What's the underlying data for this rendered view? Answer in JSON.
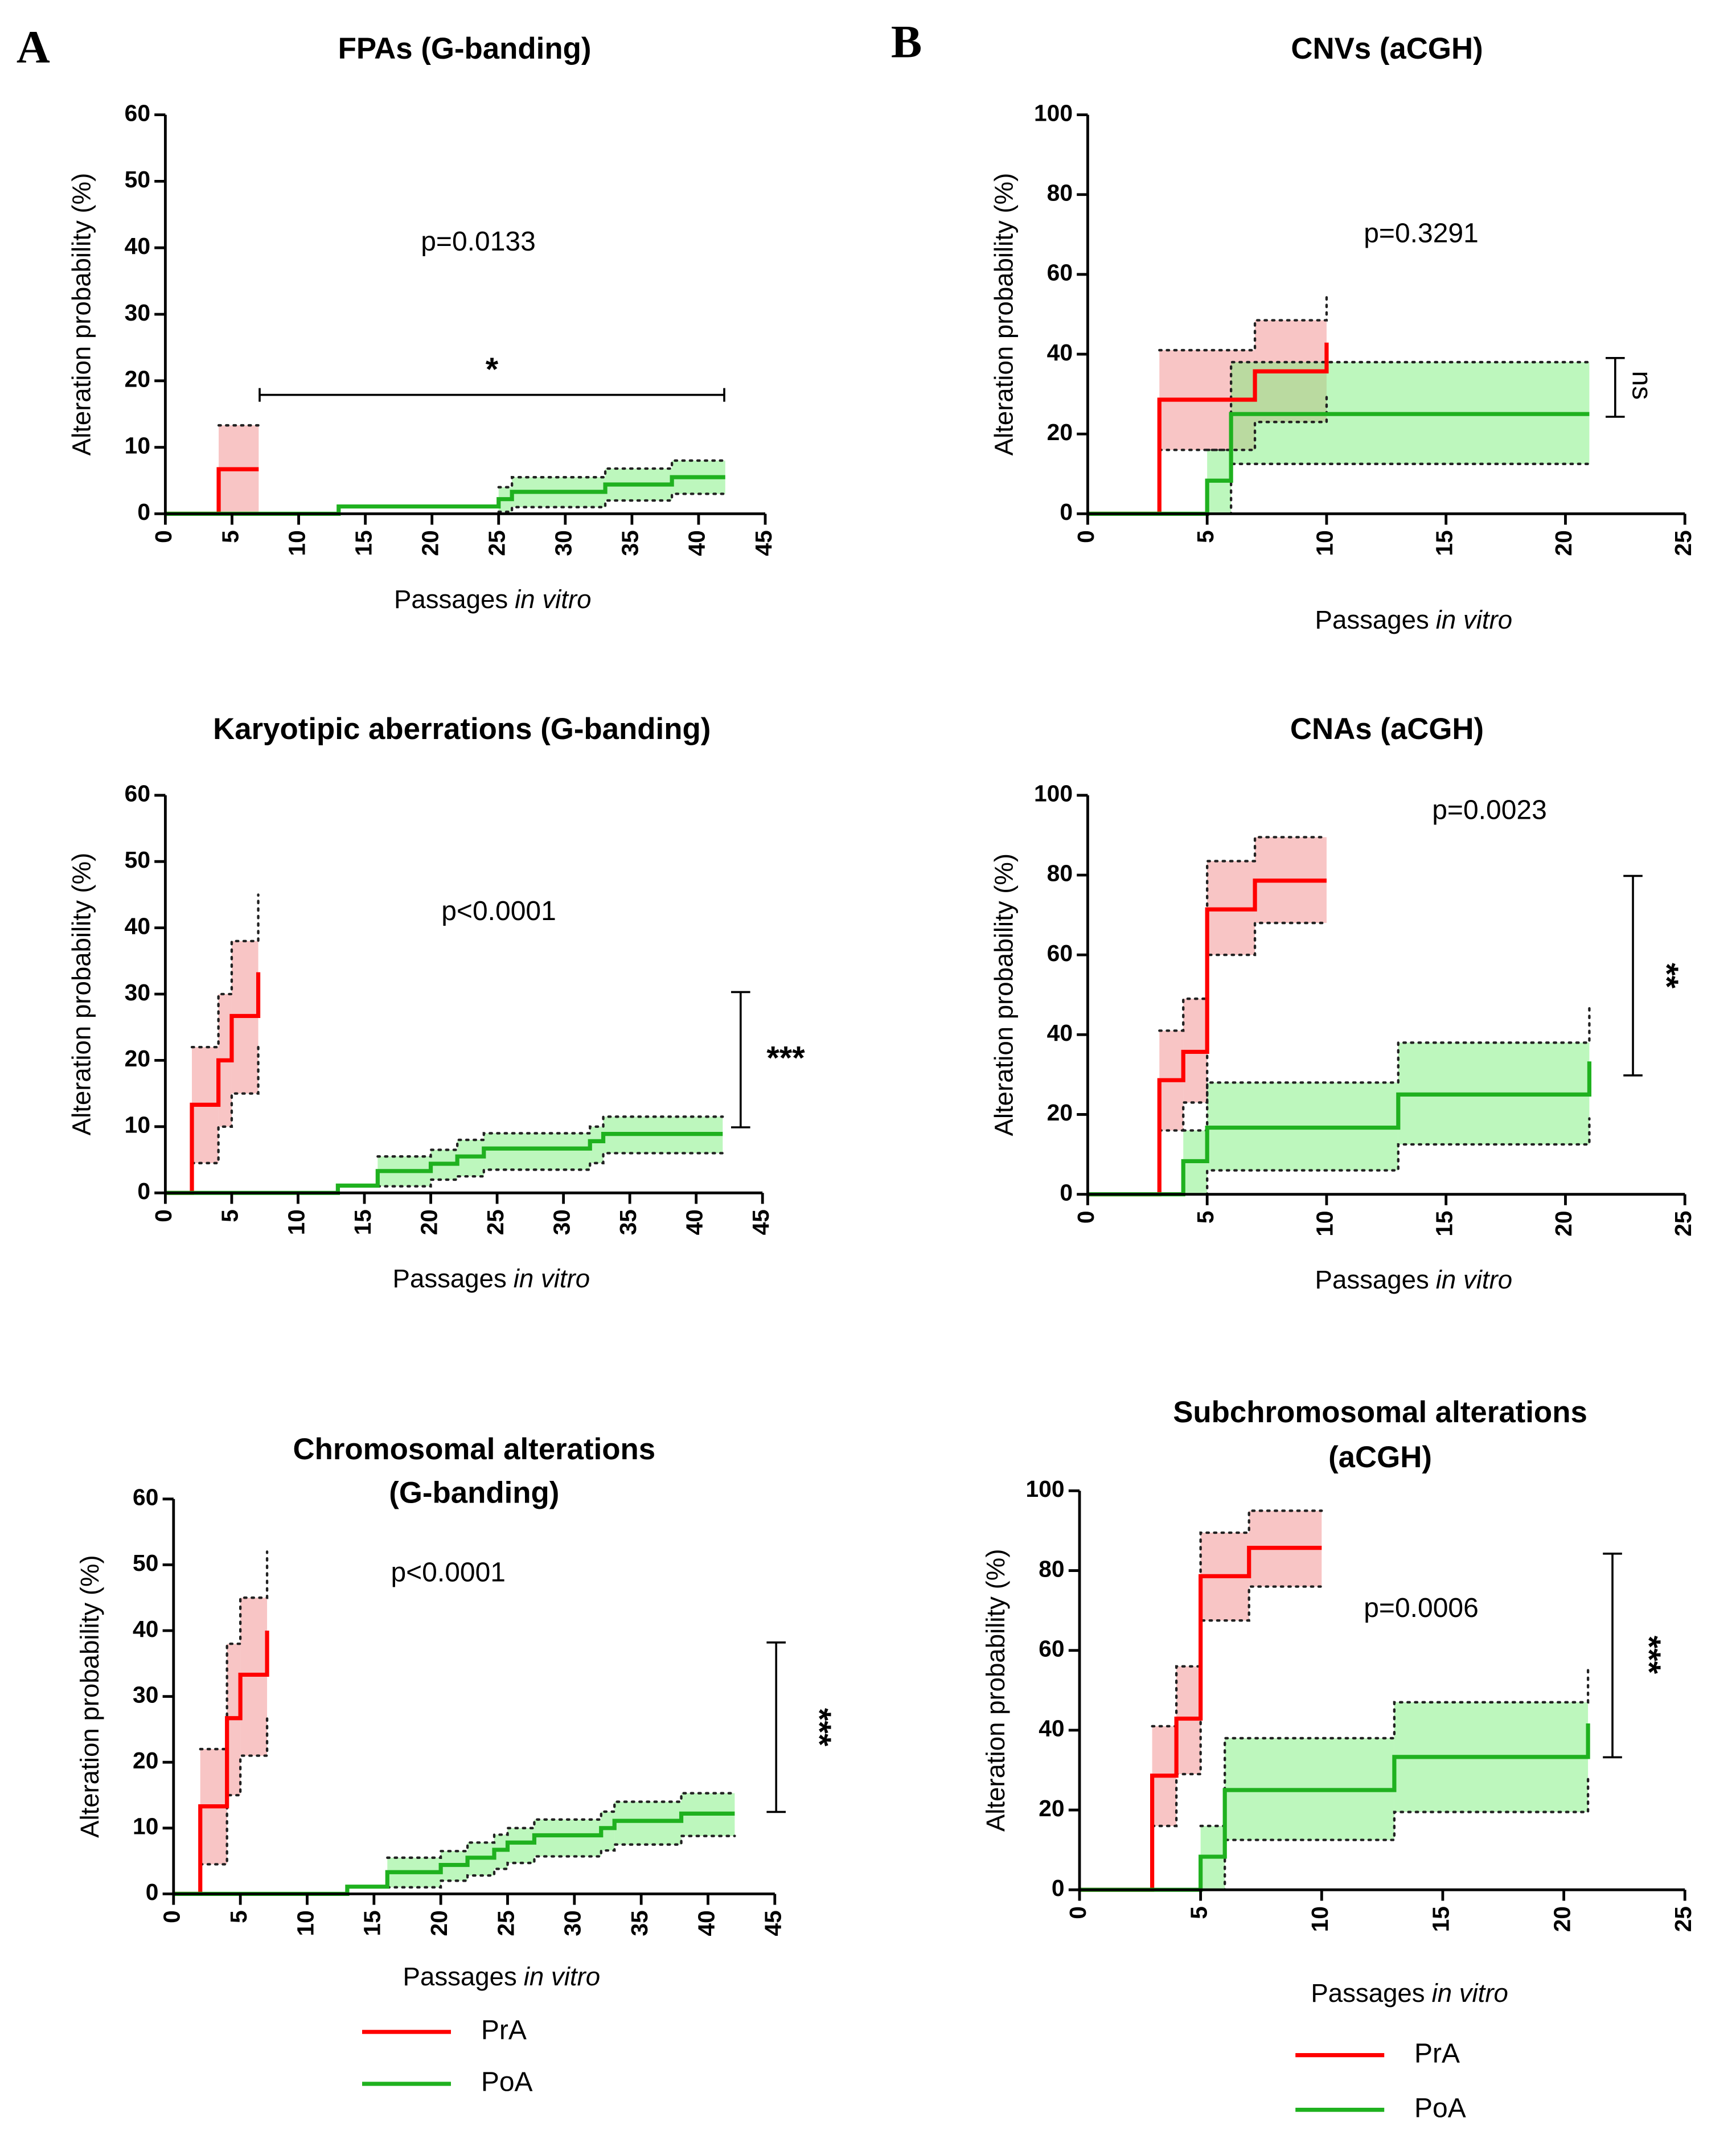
{
  "panel_labels": [
    "A",
    "B"
  ],
  "chart_data": [
    {
      "type": "line",
      "title": [
        "FPAs (G-banding)"
      ],
      "ylabel": "Alteration probability (%)",
      "xlabel": {
        "text": "Passages",
        "italic": "in vitro"
      },
      "annotation": "p=0.0133",
      "significance": "*",
      "xlim": [
        0,
        45
      ],
      "ylim": [
        0,
        60
      ],
      "xticks": [
        0,
        5,
        10,
        15,
        20,
        25,
        30,
        35,
        40,
        45
      ],
      "yticks": [
        0,
        10,
        20,
        30,
        40,
        50,
        60
      ],
      "series": [
        {
          "name": "PrA",
          "color": "#ff0000",
          "band_color": "#f28b8b",
          "x": [
            0,
            4,
            7
          ],
          "values": [
            0,
            6.7,
            6.7
          ],
          "lower": [
            null,
            0,
            0
          ],
          "upper": [
            null,
            13.3,
            13.3
          ]
        },
        {
          "name": "PoA",
          "color": "#1fb11f",
          "band_color": "#7cf07c",
          "x": [
            0,
            13,
            25,
            26,
            33,
            38,
            42
          ],
          "values": [
            0,
            1.1,
            2.2,
            3.3,
            4.4,
            5.5,
            5.5
          ],
          "lower": [
            null,
            null,
            0.3,
            1,
            2,
            3,
            3
          ],
          "upper": [
            null,
            null,
            4,
            5.5,
            6.8,
            8,
            8
          ]
        }
      ]
    },
    {
      "type": "line",
      "title": [
        "Karyotipic aberrations (G-banding)"
      ],
      "ylabel": "Alteration probability (%)",
      "xlabel": {
        "text": "Passages",
        "italic": "in vitro"
      },
      "annotation": "p<0.0001",
      "significance": "***",
      "xlim": [
        0,
        45
      ],
      "ylim": [
        0,
        60
      ],
      "xticks": [
        0,
        5,
        10,
        15,
        20,
        25,
        30,
        35,
        40,
        45
      ],
      "yticks": [
        0,
        10,
        20,
        30,
        40,
        50,
        60
      ],
      "series": [
        {
          "name": "PrA",
          "color": "#ff0000",
          "band_color": "#f28b8b",
          "x": [
            0,
            2,
            4,
            5,
            7
          ],
          "values": [
            0,
            13.3,
            20,
            26.7,
            33.3
          ],
          "lower": [
            null,
            4.5,
            10,
            15,
            22
          ],
          "upper": [
            null,
            22,
            30,
            38,
            45
          ]
        },
        {
          "name": "PoA",
          "color": "#1fb11f",
          "band_color": "#7cf07c",
          "x": [
            0,
            13,
            16,
            20,
            22,
            24,
            32,
            33,
            42
          ],
          "values": [
            0,
            1.1,
            3.3,
            4.4,
            5.5,
            6.7,
            7.8,
            8.9,
            8.9
          ],
          "lower": [
            null,
            null,
            1,
            2,
            2.5,
            3.5,
            4.5,
            6,
            6
          ],
          "upper": [
            null,
            null,
            5.5,
            6.5,
            8,
            9,
            10,
            11.5,
            11.5
          ]
        }
      ]
    },
    {
      "type": "line",
      "title": [
        "Chromosomal alterations",
        "(G-banding)"
      ],
      "ylabel": "Alteration probability (%)",
      "xlabel": {
        "text": "Passages",
        "italic": "in vitro"
      },
      "annotation": "p<0.0001",
      "significance": "***",
      "legend": true,
      "xlim": [
        0,
        45
      ],
      "ylim": [
        0,
        60
      ],
      "xticks": [
        0,
        5,
        10,
        15,
        20,
        25,
        30,
        35,
        40,
        45
      ],
      "yticks": [
        0,
        10,
        20,
        30,
        40,
        50,
        60
      ],
      "series": [
        {
          "name": "PrA",
          "color": "#ff0000",
          "band_color": "#f28b8b",
          "x": [
            0,
            2,
            4,
            5,
            7
          ],
          "values": [
            0,
            13.3,
            26.7,
            33.3,
            40
          ],
          "lower": [
            null,
            4.5,
            15,
            21,
            27
          ],
          "upper": [
            null,
            22,
            38,
            45,
            52
          ]
        },
        {
          "name": "PoA",
          "color": "#1fb11f",
          "band_color": "#7cf07c",
          "x": [
            0,
            13,
            16,
            20,
            22,
            24,
            25,
            27,
            32,
            33,
            38,
            42
          ],
          "values": [
            0,
            1.1,
            3.3,
            4.4,
            5.5,
            6.7,
            7.8,
            8.9,
            10,
            11.1,
            12.2,
            12.2
          ],
          "lower": [
            null,
            null,
            1,
            2,
            2.8,
            3.8,
            4.7,
            5.7,
            6.6,
            7.5,
            8.8,
            8.8
          ],
          "upper": [
            null,
            null,
            5.5,
            6.5,
            7.8,
            9,
            10,
            11.3,
            12.5,
            14,
            15.3,
            15.3
          ]
        }
      ]
    },
    {
      "type": "line",
      "title": [
        "CNVs (aCGH)"
      ],
      "ylabel": "Alteration probability (%)",
      "xlabel": {
        "text": "Passages",
        "italic": "in vitro"
      },
      "annotation": "p=0.3291",
      "significance": "ns",
      "xlim": [
        0,
        25
      ],
      "ylim": [
        0,
        100
      ],
      "xticks": [
        0,
        5,
        10,
        15,
        20,
        25
      ],
      "yticks": [
        0,
        20,
        40,
        60,
        80,
        100
      ],
      "series": [
        {
          "name": "PrA",
          "color": "#ff0000",
          "band_color": "#f28b8b",
          "x": [
            0,
            3,
            7,
            10
          ],
          "values": [
            0,
            28.6,
            35.7,
            42.9
          ],
          "lower": [
            null,
            16,
            23,
            30
          ],
          "upper": [
            null,
            41,
            48.5,
            55
          ]
        },
        {
          "name": "PoA",
          "color": "#1fb11f",
          "band_color": "#7cf07c",
          "x": [
            0,
            5,
            6,
            21
          ],
          "values": [
            0,
            8.3,
            25,
            25
          ],
          "lower": [
            null,
            0,
            12.5,
            12.5
          ],
          "upper": [
            null,
            16,
            38,
            38
          ]
        }
      ]
    },
    {
      "type": "line",
      "title": [
        "CNAs (aCGH)"
      ],
      "ylabel": "Alteration probability (%)",
      "xlabel": {
        "text": "Passages",
        "italic": "in vitro"
      },
      "annotation": "p=0.0023",
      "significance": "**",
      "xlim": [
        0,
        25
      ],
      "ylim": [
        0,
        100
      ],
      "xticks": [
        0,
        5,
        10,
        15,
        20,
        25
      ],
      "yticks": [
        0,
        20,
        40,
        60,
        80,
        100
      ],
      "series": [
        {
          "name": "PrA",
          "color": "#ff0000",
          "band_color": "#f28b8b",
          "x": [
            0,
            3,
            4,
            5,
            7,
            10
          ],
          "values": [
            0,
            28.6,
            35.7,
            71.4,
            78.6,
            78.6
          ],
          "lower": [
            null,
            16,
            23,
            60,
            68,
            68
          ],
          "upper": [
            null,
            41,
            49,
            83.5,
            89.5,
            89.5
          ]
        },
        {
          "name": "PoA",
          "color": "#1fb11f",
          "band_color": "#7cf07c",
          "x": [
            0,
            4,
            5,
            13,
            21
          ],
          "values": [
            0,
            8.3,
            16.7,
            25,
            33.3
          ],
          "lower": [
            null,
            0,
            6,
            12.5,
            19
          ],
          "upper": [
            null,
            16,
            28,
            38,
            47
          ]
        }
      ]
    },
    {
      "type": "line",
      "title": [
        "Subchromosomal alterations",
        "(aCGH)"
      ],
      "ylabel": "Alteration probability (%)",
      "xlabel": {
        "text": "Passages",
        "italic": "in vitro"
      },
      "annotation": "p=0.0006",
      "significance": "***",
      "legend": true,
      "xlim": [
        0,
        25
      ],
      "ylim": [
        0,
        100
      ],
      "xticks": [
        0,
        5,
        10,
        15,
        20,
        25
      ],
      "yticks": [
        0,
        20,
        40,
        60,
        80,
        100
      ],
      "series": [
        {
          "name": "PrA",
          "color": "#ff0000",
          "band_color": "#f28b8b",
          "x": [
            0,
            3,
            4,
            5,
            7,
            10
          ],
          "values": [
            0,
            28.6,
            42.9,
            78.6,
            85.7,
            85.7
          ],
          "lower": [
            null,
            16,
            29,
            67.5,
            76,
            76
          ],
          "upper": [
            null,
            41,
            56,
            89.5,
            95,
            95
          ]
        },
        {
          "name": "PoA",
          "color": "#1fb11f",
          "band_color": "#7cf07c",
          "x": [
            0,
            5,
            6,
            13,
            21
          ],
          "values": [
            0,
            8.3,
            25,
            33.3,
            41.7
          ],
          "lower": [
            null,
            0,
            12.5,
            19.5,
            28
          ],
          "upper": [
            null,
            16,
            38,
            47,
            55.5
          ]
        }
      ]
    }
  ]
}
